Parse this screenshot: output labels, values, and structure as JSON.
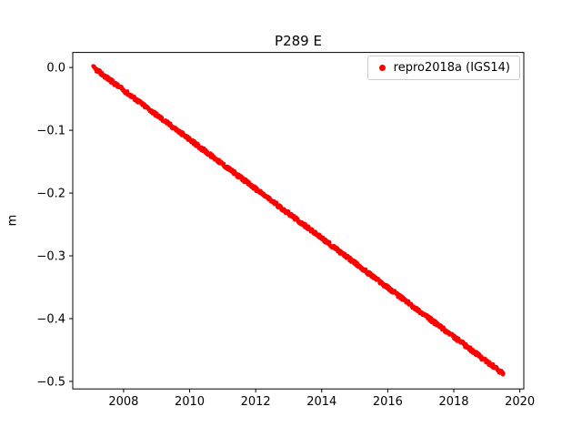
{
  "figure": {
    "title": "P289 E",
    "ylabel": "m",
    "xlabel": ""
  },
  "legend": {
    "position": "upper right",
    "items": [
      {
        "label": "repro2018a (IGS14)",
        "marker": "dot",
        "marker_color": "#ff0000"
      }
    ]
  },
  "chart_data": {
    "type": "scatter",
    "title": "P289 E",
    "xlabel": "",
    "ylabel": "m",
    "grid": false,
    "legend_position": "upper right",
    "xlim": [
      2006.46,
      2020.12
    ],
    "ylim": [
      -0.512,
      0.024
    ],
    "xticks": [
      2008,
      2010,
      2012,
      2014,
      2016,
      2018,
      2020
    ],
    "xtick_labels": [
      "2008",
      "2010",
      "2012",
      "2014",
      "2016",
      "2018",
      "2020"
    ],
    "yticks": [
      0.0,
      -0.1,
      -0.2,
      -0.3,
      -0.4,
      -0.5
    ],
    "ytick_labels": [
      "0.0",
      "−0.1",
      "−0.2",
      "−0.3",
      "−0.4",
      "−0.5"
    ],
    "series": [
      {
        "name": "repro2018a (IGS14)",
        "color": "#ff0000",
        "marker": "dot",
        "marker_radius_px": 2.2,
        "trend": {
          "x_start": 2007.08,
          "y_start": 0.0,
          "x_end": 2019.5,
          "y_end": -0.488,
          "slope_m_per_yr": -0.0393
        },
        "n_points": 900,
        "noise_amplitude_m": 0.003,
        "sampled_points": [
          [
            2007.08,
            0.0
          ],
          [
            2008.0,
            -0.036
          ],
          [
            2009.0,
            -0.076
          ],
          [
            2010.0,
            -0.115
          ],
          [
            2011.0,
            -0.154
          ],
          [
            2012.0,
            -0.193
          ],
          [
            2013.0,
            -0.233
          ],
          [
            2014.0,
            -0.272
          ],
          [
            2015.0,
            -0.311
          ],
          [
            2016.0,
            -0.351
          ],
          [
            2017.0,
            -0.39
          ],
          [
            2018.0,
            -0.429
          ],
          [
            2019.0,
            -0.469
          ],
          [
            2019.5,
            -0.488
          ]
        ]
      }
    ]
  }
}
